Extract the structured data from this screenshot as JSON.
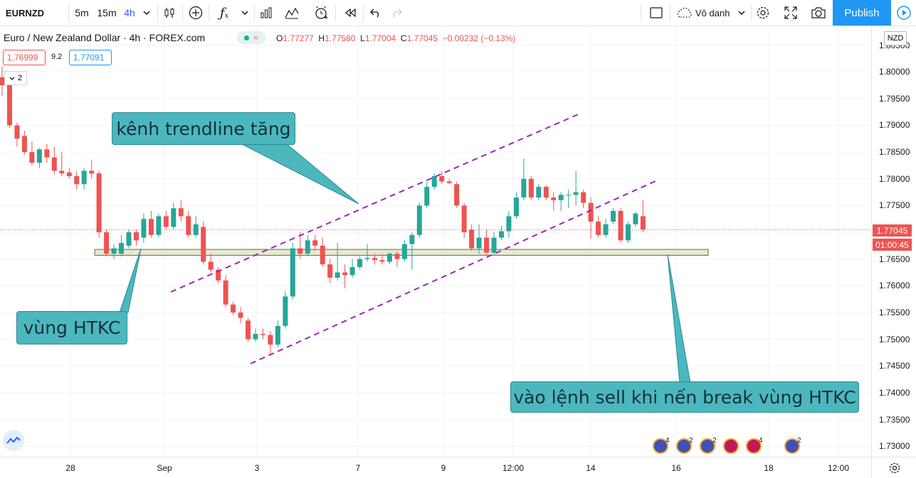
{
  "toolbar": {
    "symbol": "EURNZD",
    "intervals": [
      "5m",
      "15m",
      "4h"
    ],
    "active_interval": "4h",
    "layout_name": "Vô danh",
    "publish_label": "Publish"
  },
  "legend": {
    "title": "Euro / New Zealand Dollar · 4h · FOREX.com",
    "open_label": "O",
    "open": "1.77277",
    "high_label": "H",
    "high": "1.77580",
    "low_label": "L",
    "low": "1.77004",
    "close_label": "C",
    "close": "1.77045",
    "change": "−0.00232 (−0.13%)",
    "sell_price": "1.76999",
    "spread": "9.2",
    "buy_price": "1.77091",
    "collapsed_count": "2"
  },
  "price_axis": {
    "currency": "NZD",
    "ticks": [
      "1.80500",
      "1.80000",
      "1.79500",
      "1.79000",
      "1.78500",
      "1.78000",
      "1.77500",
      "1.77000",
      "1.76500",
      "1.76000",
      "1.75500",
      "1.75000",
      "1.74500",
      "1.74000",
      "1.73500",
      "1.73000"
    ],
    "last_price": "1.77045",
    "countdown": "01:00:45"
  },
  "time_axis": {
    "ticks": [
      "28",
      "Sep",
      "3",
      "7",
      "9",
      "12:00",
      "14",
      "16",
      "18",
      "12:00"
    ]
  },
  "annotations": {
    "channel_label": "kênh trendline tăng",
    "zone_label": "vùng HTKC",
    "entry_label": "vào lệnh sell khi nến break vùng HTKC"
  },
  "events": [
    {
      "count": "4"
    },
    {
      "count": "2"
    },
    {
      "count": "2"
    },
    {
      "count": ""
    },
    {
      "count": "4"
    },
    {
      "count": "2"
    }
  ],
  "colors": {
    "up": "#26a69a",
    "down": "#ef5350",
    "accent": "#2962ff",
    "channel": "#9c27b0",
    "callout": "#4cb7bf",
    "publish": "#2196f3"
  },
  "chart_data": {
    "type": "candlestick",
    "ylim": [
      1.7275,
      1.8075
    ],
    "candles": [
      {
        "o": 1.799,
        "h": 1.801,
        "l": 1.7955,
        "c": 1.7975
      },
      {
        "o": 1.7985,
        "h": 1.799,
        "l": 1.7895,
        "c": 1.79
      },
      {
        "o": 1.79,
        "h": 1.7905,
        "l": 1.786,
        "c": 1.7875
      },
      {
        "o": 1.788,
        "h": 1.789,
        "l": 1.7845,
        "c": 1.785
      },
      {
        "o": 1.785,
        "h": 1.787,
        "l": 1.7825,
        "c": 1.783
      },
      {
        "o": 1.783,
        "h": 1.7858,
        "l": 1.782,
        "c": 1.7855
      },
      {
        "o": 1.7855,
        "h": 1.7865,
        "l": 1.783,
        "c": 1.784
      },
      {
        "o": 1.784,
        "h": 1.786,
        "l": 1.7808,
        "c": 1.7815
      },
      {
        "o": 1.7815,
        "h": 1.785,
        "l": 1.7805,
        "c": 1.781
      },
      {
        "o": 1.7812,
        "h": 1.782,
        "l": 1.78,
        "c": 1.7805
      },
      {
        "o": 1.7805,
        "h": 1.7815,
        "l": 1.778,
        "c": 1.779
      },
      {
        "o": 1.779,
        "h": 1.782,
        "l": 1.778,
        "c": 1.7815
      },
      {
        "o": 1.7815,
        "h": 1.7835,
        "l": 1.78,
        "c": 1.781
      },
      {
        "o": 1.781,
        "h": 1.7815,
        "l": 1.769,
        "c": 1.77
      },
      {
        "o": 1.77,
        "h": 1.7705,
        "l": 1.7655,
        "c": 1.766
      },
      {
        "o": 1.766,
        "h": 1.7678,
        "l": 1.765,
        "c": 1.767
      },
      {
        "o": 1.766,
        "h": 1.7695,
        "l": 1.7655,
        "c": 1.768
      },
      {
        "o": 1.7675,
        "h": 1.7705,
        "l": 1.767,
        "c": 1.77
      },
      {
        "o": 1.77,
        "h": 1.7705,
        "l": 1.7675,
        "c": 1.7685
      },
      {
        "o": 1.769,
        "h": 1.7735,
        "l": 1.768,
        "c": 1.7725
      },
      {
        "o": 1.7725,
        "h": 1.774,
        "l": 1.769,
        "c": 1.7695
      },
      {
        "o": 1.7695,
        "h": 1.7735,
        "l": 1.769,
        "c": 1.773
      },
      {
        "o": 1.773,
        "h": 1.774,
        "l": 1.7705,
        "c": 1.771
      },
      {
        "o": 1.771,
        "h": 1.7755,
        "l": 1.7705,
        "c": 1.7745
      },
      {
        "o": 1.7745,
        "h": 1.776,
        "l": 1.772,
        "c": 1.773
      },
      {
        "o": 1.773,
        "h": 1.774,
        "l": 1.769,
        "c": 1.7695
      },
      {
        "o": 1.7695,
        "h": 1.773,
        "l": 1.769,
        "c": 1.7715
      },
      {
        "o": 1.771,
        "h": 1.772,
        "l": 1.764,
        "c": 1.7645
      },
      {
        "o": 1.7645,
        "h": 1.766,
        "l": 1.7625,
        "c": 1.763
      },
      {
        "o": 1.763,
        "h": 1.7635,
        "l": 1.7605,
        "c": 1.761
      },
      {
        "o": 1.761,
        "h": 1.762,
        "l": 1.756,
        "c": 1.7565
      },
      {
        "o": 1.7565,
        "h": 1.757,
        "l": 1.7545,
        "c": 1.755
      },
      {
        "o": 1.755,
        "h": 1.756,
        "l": 1.753,
        "c": 1.754
      },
      {
        "o": 1.7535,
        "h": 1.754,
        "l": 1.7495,
        "c": 1.75
      },
      {
        "o": 1.75,
        "h": 1.752,
        "l": 1.7495,
        "c": 1.751
      },
      {
        "o": 1.751,
        "h": 1.752,
        "l": 1.75,
        "c": 1.7508
      },
      {
        "o": 1.7508,
        "h": 1.7515,
        "l": 1.747,
        "c": 1.749
      },
      {
        "o": 1.749,
        "h": 1.7535,
        "l": 1.7485,
        "c": 1.7525
      },
      {
        "o": 1.7525,
        "h": 1.759,
        "l": 1.752,
        "c": 1.758
      },
      {
        "o": 1.758,
        "h": 1.768,
        "l": 1.7575,
        "c": 1.767
      },
      {
        "o": 1.767,
        "h": 1.77,
        "l": 1.765,
        "c": 1.766
      },
      {
        "o": 1.766,
        "h": 1.7695,
        "l": 1.7655,
        "c": 1.7685
      },
      {
        "o": 1.7685,
        "h": 1.7695,
        "l": 1.7665,
        "c": 1.7675
      },
      {
        "o": 1.7675,
        "h": 1.769,
        "l": 1.7635,
        "c": 1.764
      },
      {
        "o": 1.764,
        "h": 1.765,
        "l": 1.7605,
        "c": 1.7615
      },
      {
        "o": 1.7615,
        "h": 1.768,
        "l": 1.761,
        "c": 1.7625
      },
      {
        "o": 1.7625,
        "h": 1.764,
        "l": 1.7595,
        "c": 1.762
      },
      {
        "o": 1.762,
        "h": 1.765,
        "l": 1.7615,
        "c": 1.7635
      },
      {
        "o": 1.7635,
        "h": 1.7655,
        "l": 1.763,
        "c": 1.765
      },
      {
        "o": 1.765,
        "h": 1.7678,
        "l": 1.7645,
        "c": 1.7652
      },
      {
        "o": 1.7652,
        "h": 1.766,
        "l": 1.764,
        "c": 1.7648
      },
      {
        "o": 1.7648,
        "h": 1.766,
        "l": 1.764,
        "c": 1.7645
      },
      {
        "o": 1.7645,
        "h": 1.7662,
        "l": 1.764,
        "c": 1.766
      },
      {
        "o": 1.766,
        "h": 1.7665,
        "l": 1.7635,
        "c": 1.765
      },
      {
        "o": 1.765,
        "h": 1.7685,
        "l": 1.7645,
        "c": 1.7678
      },
      {
        "o": 1.7678,
        "h": 1.77,
        "l": 1.763,
        "c": 1.7695
      },
      {
        "o": 1.7695,
        "h": 1.7755,
        "l": 1.769,
        "c": 1.775
      },
      {
        "o": 1.775,
        "h": 1.7795,
        "l": 1.7745,
        "c": 1.7785
      },
      {
        "o": 1.7785,
        "h": 1.781,
        "l": 1.778,
        "c": 1.7805
      },
      {
        "o": 1.7805,
        "h": 1.7815,
        "l": 1.779,
        "c": 1.7795
      },
      {
        "o": 1.7795,
        "h": 1.78,
        "l": 1.779,
        "c": 1.7792
      },
      {
        "o": 1.779,
        "h": 1.7795,
        "l": 1.7745,
        "c": 1.775
      },
      {
        "o": 1.775,
        "h": 1.7755,
        "l": 1.769,
        "c": 1.77
      },
      {
        "o": 1.7705,
        "h": 1.7715,
        "l": 1.7665,
        "c": 1.767
      },
      {
        "o": 1.767,
        "h": 1.7715,
        "l": 1.766,
        "c": 1.769
      },
      {
        "o": 1.769,
        "h": 1.7705,
        "l": 1.7658,
        "c": 1.7662
      },
      {
        "o": 1.7662,
        "h": 1.77,
        "l": 1.7658,
        "c": 1.769
      },
      {
        "o": 1.769,
        "h": 1.7712,
        "l": 1.7685,
        "c": 1.7702
      },
      {
        "o": 1.7702,
        "h": 1.774,
        "l": 1.769,
        "c": 1.773
      },
      {
        "o": 1.773,
        "h": 1.7775,
        "l": 1.7725,
        "c": 1.7765
      },
      {
        "o": 1.7765,
        "h": 1.7838,
        "l": 1.776,
        "c": 1.78
      },
      {
        "o": 1.78,
        "h": 1.7805,
        "l": 1.776,
        "c": 1.7765
      },
      {
        "o": 1.7765,
        "h": 1.779,
        "l": 1.776,
        "c": 1.7785
      },
      {
        "o": 1.7785,
        "h": 1.7788,
        "l": 1.776,
        "c": 1.7765
      },
      {
        "o": 1.7765,
        "h": 1.7775,
        "l": 1.774,
        "c": 1.776
      },
      {
        "o": 1.776,
        "h": 1.7775,
        "l": 1.774,
        "c": 1.777
      },
      {
        "o": 1.777,
        "h": 1.778,
        "l": 1.7745,
        "c": 1.777
      },
      {
        "o": 1.777,
        "h": 1.7815,
        "l": 1.775,
        "c": 1.7775
      },
      {
        "o": 1.7775,
        "h": 1.778,
        "l": 1.7745,
        "c": 1.7755
      },
      {
        "o": 1.7755,
        "h": 1.7765,
        "l": 1.7688,
        "c": 1.772
      },
      {
        "o": 1.772,
        "h": 1.773,
        "l": 1.769,
        "c": 1.7695
      },
      {
        "o": 1.7695,
        "h": 1.7725,
        "l": 1.769,
        "c": 1.7715
      },
      {
        "o": 1.772,
        "h": 1.7745,
        "l": 1.7715,
        "c": 1.774
      },
      {
        "o": 1.774,
        "h": 1.7745,
        "l": 1.768,
        "c": 1.7685
      },
      {
        "o": 1.7685,
        "h": 1.772,
        "l": 1.768,
        "c": 1.7715
      },
      {
        "o": 1.7715,
        "h": 1.7738,
        "l": 1.771,
        "c": 1.7735
      },
      {
        "o": 1.773,
        "h": 1.776,
        "l": 1.77,
        "c": 1.7705
      }
    ]
  }
}
